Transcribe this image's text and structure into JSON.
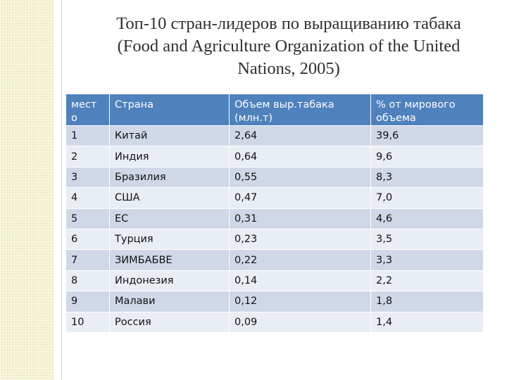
{
  "title": {
    "line1": "Топ-10 стран-лидеров по выращиванию табака",
    "line2": "(Food and Agriculture Organization of the United",
    "line3": "Nations, 2005)"
  },
  "table": {
    "headers": {
      "place_line1": "мест",
      "place_line2": "о",
      "country": "Страна",
      "volume": "Объем выр.табака (млн.т)",
      "share": "% от мирового объема"
    },
    "rows": [
      {
        "place": "1",
        "country": "Китай",
        "volume": "2,64",
        "share": "39,6"
      },
      {
        "place": "2",
        "country": "Индия",
        "volume": "0,64",
        "share": "9,6"
      },
      {
        "place": "3",
        "country": "Бразилия",
        "volume": "0,55",
        "share": "8,3"
      },
      {
        "place": "4",
        "country": "США",
        "volume": "0,47",
        "share": "7,0"
      },
      {
        "place": "5",
        "country": "ЕС",
        "volume": "0,31",
        "share": "4,6"
      },
      {
        "place": "6",
        "country": "Турция",
        "volume": "0,23",
        "share": "3,5"
      },
      {
        "place": "7",
        "country": "ЗИМБАБВЕ",
        "volume": "0,22",
        "share": "3,3"
      },
      {
        "place": "8",
        "country": "Индонезия",
        "volume": "0,14",
        "share": "2,2"
      },
      {
        "place": "9",
        "country": "Малави",
        "volume": "0,12",
        "share": "1,8"
      },
      {
        "place": "10",
        "country": "Россия",
        "volume": "0,09",
        "share": "1,4"
      }
    ]
  },
  "colors": {
    "header_bg": "#4f81bd",
    "row_odd": "#d0d8e8",
    "row_even": "#e9edf4",
    "side_strip": "#f1efc8"
  }
}
